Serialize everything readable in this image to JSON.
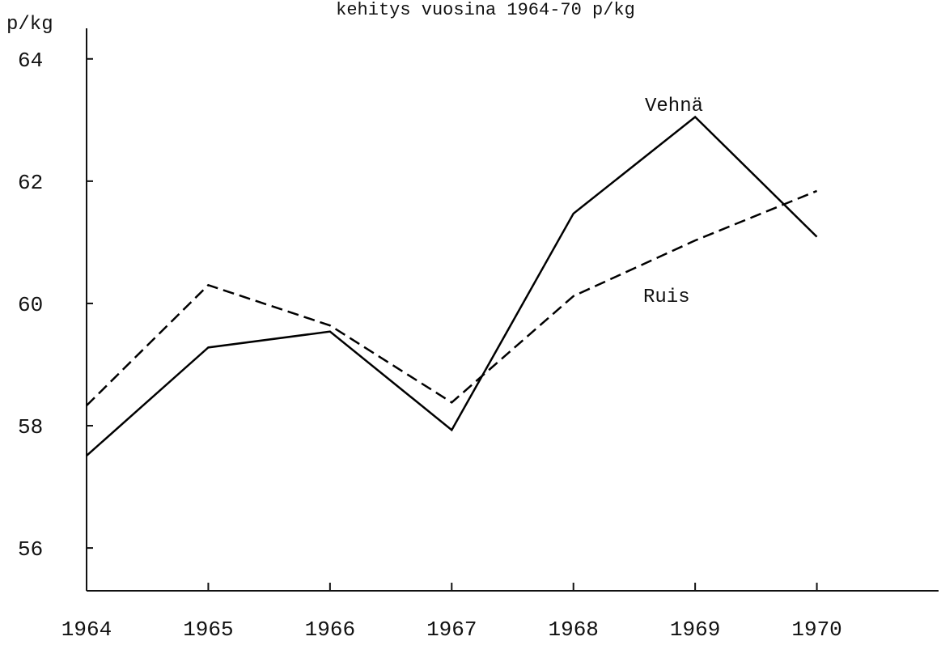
{
  "chart_data": {
    "type": "line",
    "title": "kehitys vuosina 1964-70 p/kg",
    "y_label": "p/kg",
    "x": [
      1964,
      1965,
      1966,
      1967,
      1968,
      1969,
      1970
    ],
    "series": [
      {
        "name": "Vehnä",
        "color": "#000000",
        "linestyle": "solid",
        "values": [
          57.51,
          59.28,
          59.54,
          57.93,
          61.47,
          63.05,
          61.09
        ]
      },
      {
        "name": "Ruis",
        "color": "#000000",
        "linestyle": "dashed",
        "values": [
          58.33,
          60.3,
          59.64,
          58.38,
          60.12,
          61.03,
          61.84
        ]
      }
    ],
    "xlim": [
      1964,
      1971
    ],
    "xticks": [
      1964,
      1965,
      1966,
      1967,
      1968,
      1969,
      1970
    ],
    "ylim": [
      55.3,
      64.5
    ],
    "yticks": [
      56,
      58,
      60,
      62,
      64
    ],
    "grid": false
  }
}
